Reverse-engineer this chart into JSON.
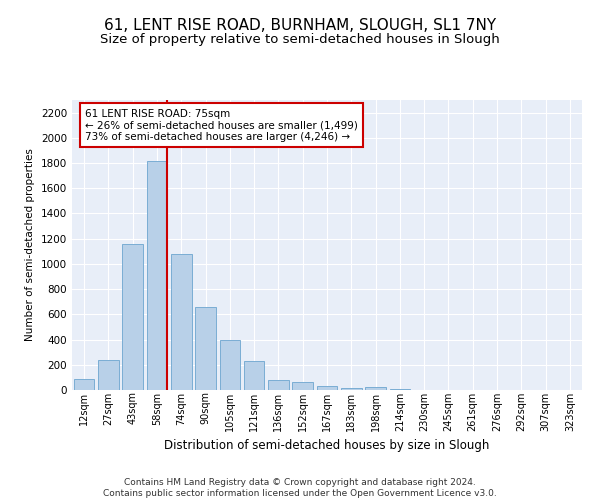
{
  "title": "61, LENT RISE ROAD, BURNHAM, SLOUGH, SL1 7NY",
  "subtitle": "Size of property relative to semi-detached houses in Slough",
  "xlabel": "Distribution of semi-detached houses by size in Slough",
  "ylabel": "Number of semi-detached properties",
  "categories": [
    "12sqm",
    "27sqm",
    "43sqm",
    "58sqm",
    "74sqm",
    "90sqm",
    "105sqm",
    "121sqm",
    "136sqm",
    "152sqm",
    "167sqm",
    "183sqm",
    "198sqm",
    "214sqm",
    "230sqm",
    "245sqm",
    "261sqm",
    "276sqm",
    "292sqm",
    "307sqm",
    "323sqm"
  ],
  "bar_heights": [
    90,
    240,
    1160,
    1820,
    1080,
    660,
    400,
    230,
    80,
    65,
    35,
    15,
    20,
    10,
    0,
    0,
    0,
    0,
    0,
    0,
    0
  ],
  "bar_color": "#b8d0e8",
  "bar_edge_color": "#7aadd4",
  "marker_index": 3,
  "marker_line_color": "#cc0000",
  "marker_label": "61 LENT RISE ROAD: 75sqm",
  "smaller_pct": "26%",
  "smaller_n": "1,499",
  "larger_pct": "73%",
  "larger_n": "4,246",
  "annotation_box_color": "#ffffff",
  "annotation_box_edge": "#cc0000",
  "ylim": [
    0,
    2300
  ],
  "yticks": [
    0,
    200,
    400,
    600,
    800,
    1000,
    1200,
    1400,
    1600,
    1800,
    2000,
    2200
  ],
  "plot_bg_color": "#e8eef8",
  "grid_color": "#ffffff",
  "footer": "Contains HM Land Registry data © Crown copyright and database right 2024.\nContains public sector information licensed under the Open Government Licence v3.0.",
  "title_fontsize": 11,
  "subtitle_fontsize": 9.5,
  "footer_fontsize": 6.5
}
